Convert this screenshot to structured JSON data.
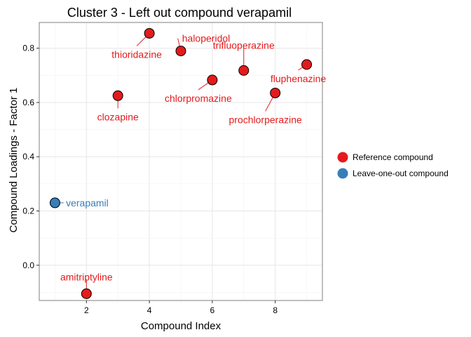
{
  "chart_data": {
    "type": "scatter",
    "title": "Cluster 3 - Left out compound verapamil",
    "xlabel": "Compound Index",
    "ylabel": "Compound Loadings - Factor 1",
    "xlim": [
      0.5,
      9.5
    ],
    "ylim": [
      -0.13,
      0.895
    ],
    "x_ticks": [
      2,
      4,
      6,
      8
    ],
    "x_tick_labels": [
      "2",
      "4",
      "6",
      "8"
    ],
    "y_ticks": [
      0.0,
      0.2,
      0.4,
      0.6,
      0.8
    ],
    "y_tick_labels": [
      "0.0",
      "0.2",
      "0.4",
      "0.6",
      "0.8"
    ],
    "grid": true,
    "legend_position": "right",
    "series": [
      {
        "name": "Reference compound",
        "color": "#E41A1C",
        "points": [
          {
            "x": 2,
            "y": -0.105,
            "label": "amitriptyline"
          },
          {
            "x": 3,
            "y": 0.625,
            "label": "clozapine"
          },
          {
            "x": 4,
            "y": 0.855,
            "label": "thioridazine"
          },
          {
            "x": 5,
            "y": 0.79,
            "label": "haloperidol"
          },
          {
            "x": 6,
            "y": 0.683,
            "label": "chlorpromazine"
          },
          {
            "x": 7,
            "y": 0.718,
            "label": "trifluoperazine"
          },
          {
            "x": 8,
            "y": 0.635,
            "label": "prochlorperazine"
          },
          {
            "x": 9,
            "y": 0.74,
            "label": "fluphenazine"
          }
        ]
      },
      {
        "name": "Leave-one-out compound",
        "color": "#377EB8",
        "points": [
          {
            "x": 1,
            "y": 0.23,
            "label": "verapamil"
          }
        ]
      }
    ]
  }
}
